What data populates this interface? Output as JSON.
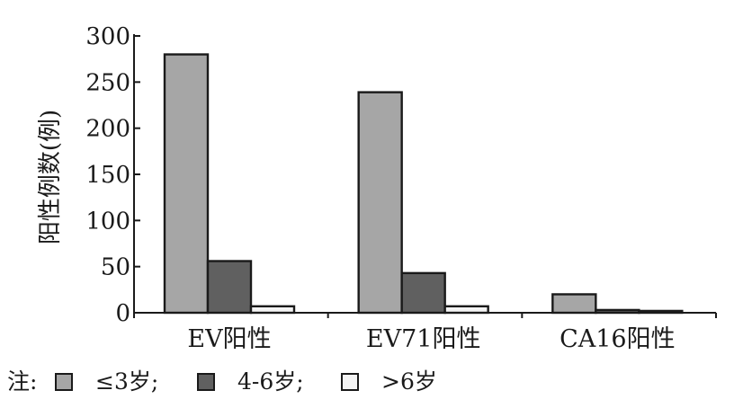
{
  "chart_data": {
    "type": "bar",
    "title": "",
    "xlabel": "",
    "ylabel": "阳性例数(例)",
    "ylim": [
      0,
      300
    ],
    "yticks": [
      0,
      50,
      100,
      150,
      200,
      250,
      300
    ],
    "categories": [
      "EV阳性",
      "EV71阳性",
      "CA16阳性"
    ],
    "series": [
      {
        "name": "≤3岁",
        "values": [
          280,
          239,
          20
        ],
        "color": "#a6a6a6"
      },
      {
        "name": "4-6岁",
        "values": [
          56,
          43,
          3
        ],
        "color": "#606060"
      },
      {
        "name": ">6岁",
        "values": [
          7,
          7,
          2
        ],
        "color": "#f4f4f4"
      }
    ],
    "grid": false,
    "legend": {
      "placement": "bottom",
      "prefix": "注:",
      "separator": ";"
    }
  }
}
